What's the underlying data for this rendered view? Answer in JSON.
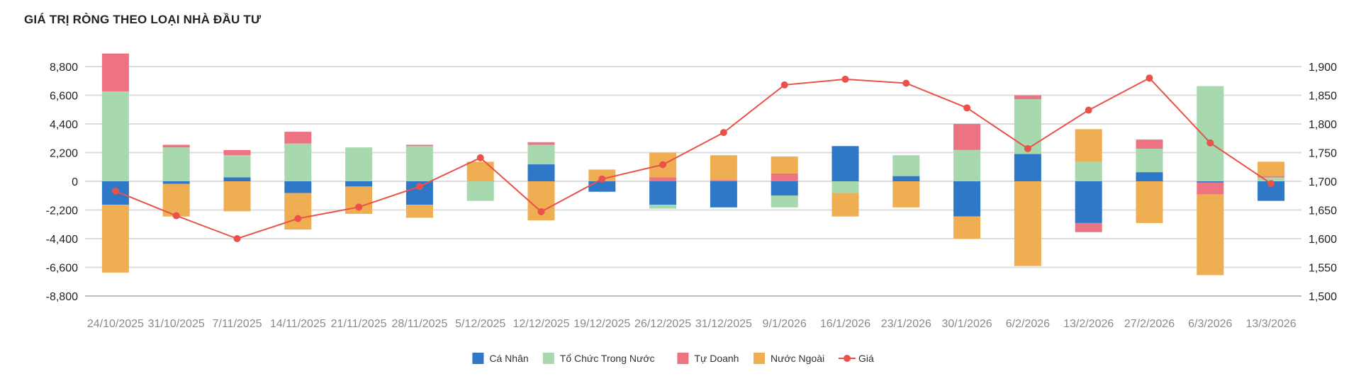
{
  "chart_data": {
    "type": "bar",
    "stacked": true,
    "title": "GIÁ TRỊ RÒNG THEO LOẠI NHÀ ĐẦU TƯ",
    "categories": [
      "24/10/2025",
      "31/10/2025",
      "7/11/2025",
      "14/11/2025",
      "21/11/2025",
      "28/11/2025",
      "5/12/2025",
      "12/12/2025",
      "19/12/2025",
      "26/12/2025",
      "31/12/2025",
      "9/1/2026",
      "16/1/2026",
      "23/1/2026",
      "30/1/2026",
      "6/2/2026",
      "13/2/2026",
      "27/2/2026",
      "6/3/2026",
      "13/3/2026"
    ],
    "y_left": {
      "ylim": [
        -8800,
        8800
      ],
      "ticks": [
        8800,
        6600,
        4400,
        2200,
        0,
        -2200,
        -4400,
        -6600,
        -8800
      ],
      "tick_labels": [
        "8,800",
        "6,600",
        "4,400",
        "2,200",
        "0",
        "-2,200",
        "-4,400",
        "-6,600",
        "-8,800"
      ]
    },
    "y_right": {
      "ylim": [
        1500,
        1900
      ],
      "ticks": [
        1900,
        1850,
        1800,
        1750,
        1700,
        1650,
        1600,
        1550,
        1500
      ],
      "tick_labels": [
        "1,900",
        "1,850",
        "1,800",
        "1,750",
        "1,700",
        "1,650",
        "1,600",
        "1,550",
        "1,500"
      ]
    },
    "grid": true,
    "legend_position": "bottom",
    "series": [
      {
        "name": "Cá Nhân",
        "color": "#2f78c8",
        "type": "bar",
        "values": [
          -1800,
          -200,
          300,
          -900,
          -400,
          -1800,
          0,
          1300,
          -800,
          -1800,
          -2000,
          -1100,
          2700,
          400,
          -2700,
          2100,
          -3200,
          700,
          -100,
          -1500
        ]
      },
      {
        "name": "Tổ Chức Trong Nước",
        "color": "#a8d8ae",
        "type": "bar",
        "values": [
          6900,
          2600,
          1700,
          2900,
          2600,
          2700,
          -1500,
          1500,
          0,
          -300,
          0,
          -900,
          -900,
          1600,
          2400,
          4200,
          1500,
          1800,
          7300,
          300
        ]
      },
      {
        "name": "Tự Doanh",
        "color": "#ee7382",
        "type": "bar",
        "values": [
          2900,
          200,
          400,
          900,
          0,
          100,
          0,
          200,
          0,
          300,
          100,
          600,
          0,
          0,
          2000,
          300,
          -700,
          700,
          -900,
          100
        ]
      },
      {
        "name": "Nước Ngoài",
        "color": "#efae52",
        "type": "bar",
        "values": [
          -5200,
          -2500,
          -2300,
          -2800,
          -2100,
          -1000,
          1500,
          -3000,
          900,
          1900,
          1900,
          1300,
          -1800,
          -2000,
          -1700,
          -6500,
          2500,
          -3200,
          -6200,
          1100
        ]
      },
      {
        "name": "Giá",
        "color": "#e8524a",
        "type": "line",
        "axis": "right",
        "values": [
          1683,
          1640,
          1600,
          1635,
          1655,
          1691,
          1741,
          1647,
          1704,
          1729,
          1785,
          1868,
          1878,
          1871,
          1828,
          1757,
          1824,
          1880,
          1767,
          1696
        ]
      }
    ]
  }
}
